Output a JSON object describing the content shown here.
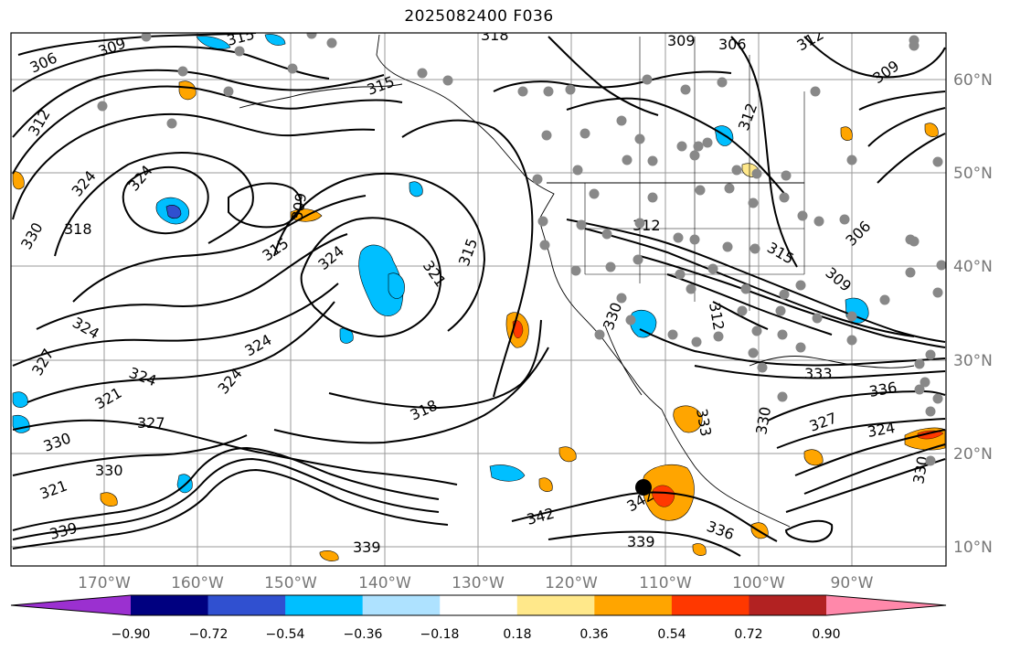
{
  "title": "2025082400 F036",
  "map": {
    "lat_labels": [
      "60°N",
      "50°N",
      "40°N",
      "30°N",
      "20°N",
      "10°N"
    ],
    "lon_labels": [
      "170°W",
      "160°W",
      "150°W",
      "140°W",
      "130°W",
      "120°W",
      "110°W",
      "100°W",
      "90°W"
    ],
    "contour_labels": [
      "306",
      "309",
      "312",
      "315",
      "318",
      "321",
      "324",
      "327",
      "330",
      "333",
      "336",
      "339",
      "342"
    ],
    "colors": {
      "contour": "#000000",
      "grid": "#9a9a9a",
      "station": "#888888",
      "center_marker": "#000000"
    }
  },
  "colorbar": {
    "labels": [
      "−0.90",
      "−0.72",
      "−0.54",
      "−0.36",
      "−0.18",
      "0.18",
      "0.36",
      "0.54",
      "0.72",
      "0.90"
    ],
    "colors": [
      "#9b30d0",
      "#000080",
      "#3050d0",
      "#00bfff",
      "#aee2ff",
      "#ffffff",
      "#ffe88a",
      "#ffa500",
      "#ff3800",
      "#b22222",
      "#ff88aa"
    ]
  }
}
